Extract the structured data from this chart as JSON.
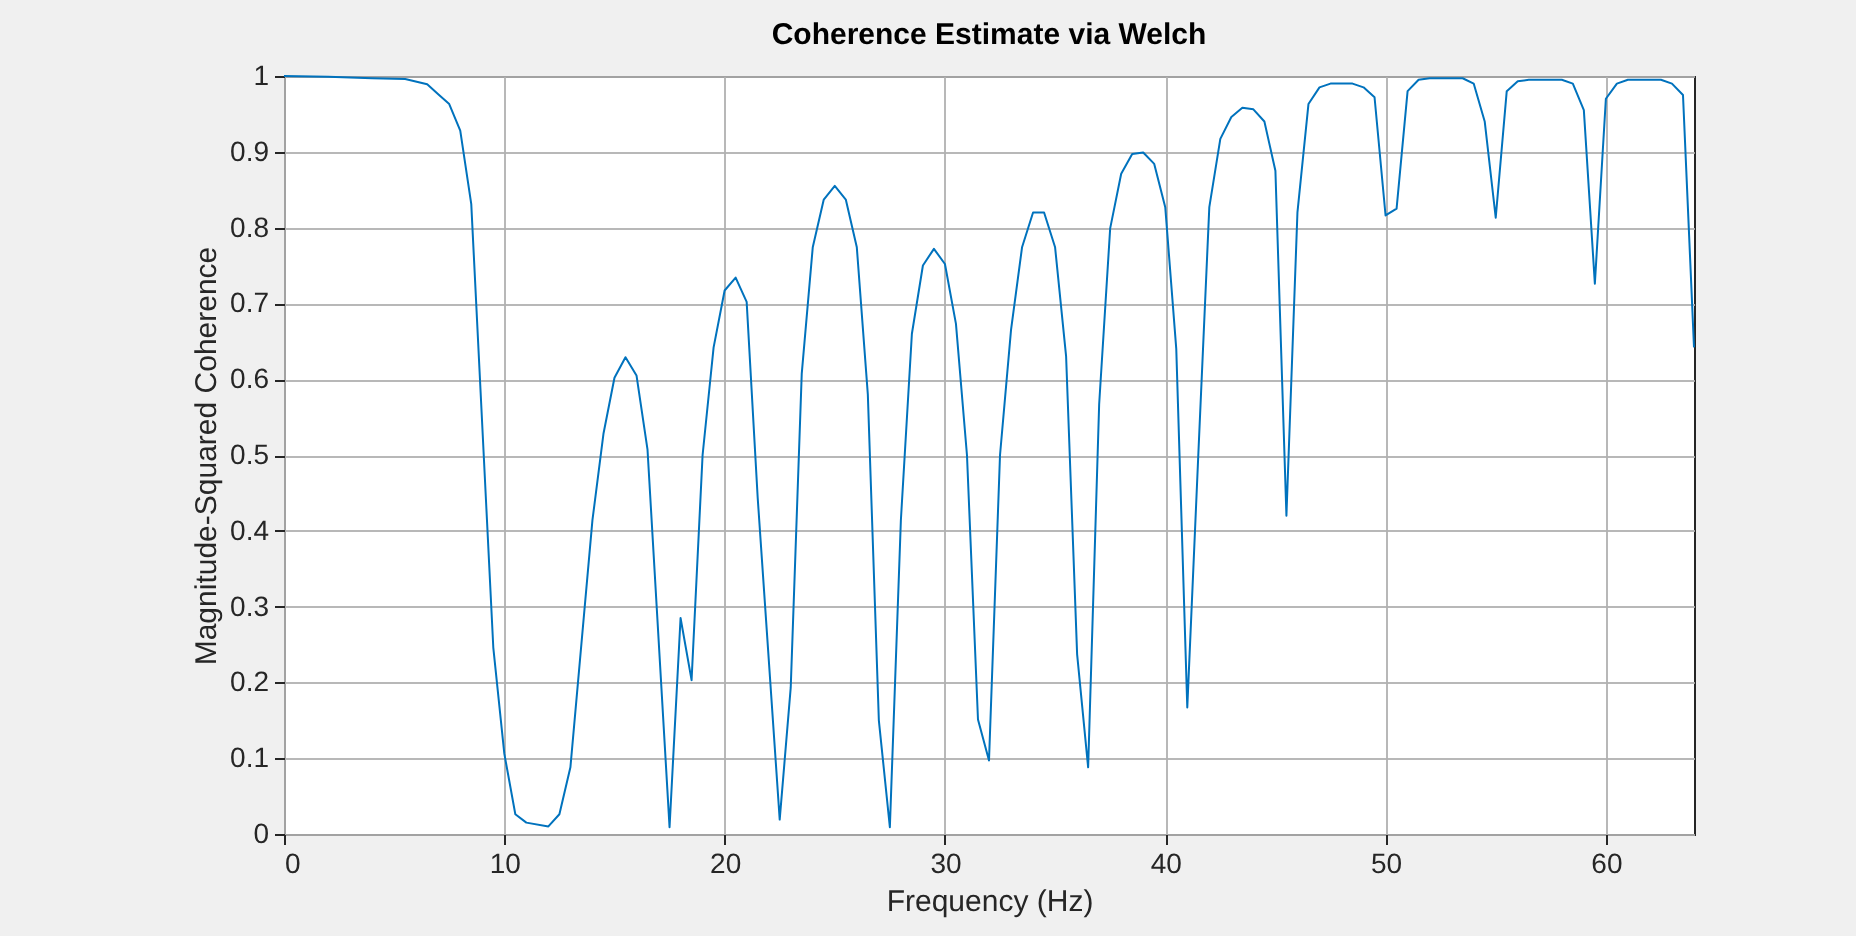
{
  "chart_data": {
    "type": "line",
    "title": "Coherence Estimate via Welch",
    "xlabel": "Frequency (Hz)",
    "ylabel": "Magnitude-Squared Coherence",
    "x": [
      0,
      2,
      4,
      5.5,
      6.5,
      7,
      7.5,
      8,
      8.5,
      9.5,
      10,
      10.5,
      11,
      12,
      12.5,
      13,
      14,
      14.5,
      15,
      15.5,
      16,
      16.5,
      17.5,
      18,
      18.5,
      19,
      19.5,
      20,
      20.5,
      21,
      21.5,
      22.5,
      23,
      23.5,
      24,
      24.5,
      25,
      25.5,
      26,
      26.5,
      27,
      27.5,
      28,
      28.5,
      29,
      29.5,
      30,
      30.5,
      31,
      31.5,
      32,
      32.5,
      33,
      33.5,
      34,
      34.5,
      35,
      35.5,
      36,
      36.5,
      37,
      37.5,
      38,
      38.5,
      39,
      39.5,
      40,
      40.5,
      41,
      41.5,
      42,
      42.5,
      43,
      43.5,
      44,
      44.5,
      45,
      45.5,
      46,
      46.5,
      47,
      47.5,
      48.5,
      49,
      49.5,
      50,
      50.5,
      51,
      51.5,
      52,
      53.5,
      54,
      54.5,
      55,
      55.5,
      56,
      56.5,
      58,
      58.5,
      59,
      59.5,
      60,
      60.5,
      61,
      62.5,
      63,
      63.5,
      64
    ],
    "series": [
      {
        "color": "#0072bd",
        "values": [
          1,
          0.999,
          0.997,
          0.996,
          0.989,
          0.976,
          0.963,
          0.928,
          0.831,
          0.246,
          0.106,
          0.026,
          0.015,
          0.01,
          0.026,
          0.088,
          0.414,
          0.528,
          0.602,
          0.629,
          0.605,
          0.507,
          0.009,
          0.285,
          0.203,
          0.5,
          0.642,
          0.717,
          0.734,
          0.702,
          0.444,
          0.019,
          0.193,
          0.607,
          0.774,
          0.837,
          0.855,
          0.837,
          0.774,
          0.58,
          0.15,
          0.009,
          0.414,
          0.66,
          0.75,
          0.772,
          0.752,
          0.673,
          0.5,
          0.151,
          0.097,
          0.5,
          0.665,
          0.774,
          0.82,
          0.82,
          0.774,
          0.63,
          0.237,
          0.088,
          0.567,
          0.799,
          0.871,
          0.897,
          0.899,
          0.884,
          0.827,
          0.64,
          0.167,
          0.5,
          0.827,
          0.917,
          0.946,
          0.958,
          0.956,
          0.94,
          0.875,
          0.42,
          0.82,
          0.963,
          0.985,
          0.99,
          0.99,
          0.985,
          0.972,
          0.816,
          0.825,
          0.98,
          0.995,
          0.997,
          0.997,
          0.99,
          0.94,
          0.813,
          0.98,
          0.993,
          0.995,
          0.995,
          0.99,
          0.955,
          0.726,
          0.97,
          0.99,
          0.995,
          0.995,
          0.99,
          0.975,
          0.642
        ]
      }
    ],
    "xlim": [
      0,
      64
    ],
    "xticks": [
      0,
      10,
      20,
      30,
      40,
      50,
      60
    ],
    "ylim": [
      0,
      1
    ],
    "yticks": [
      0,
      0.1,
      0.2,
      0.3,
      0.4,
      0.5,
      0.6,
      0.7,
      0.8,
      0.9,
      1
    ],
    "grid": true,
    "legend": false,
    "marker": "none",
    "line_style": "solid"
  }
}
